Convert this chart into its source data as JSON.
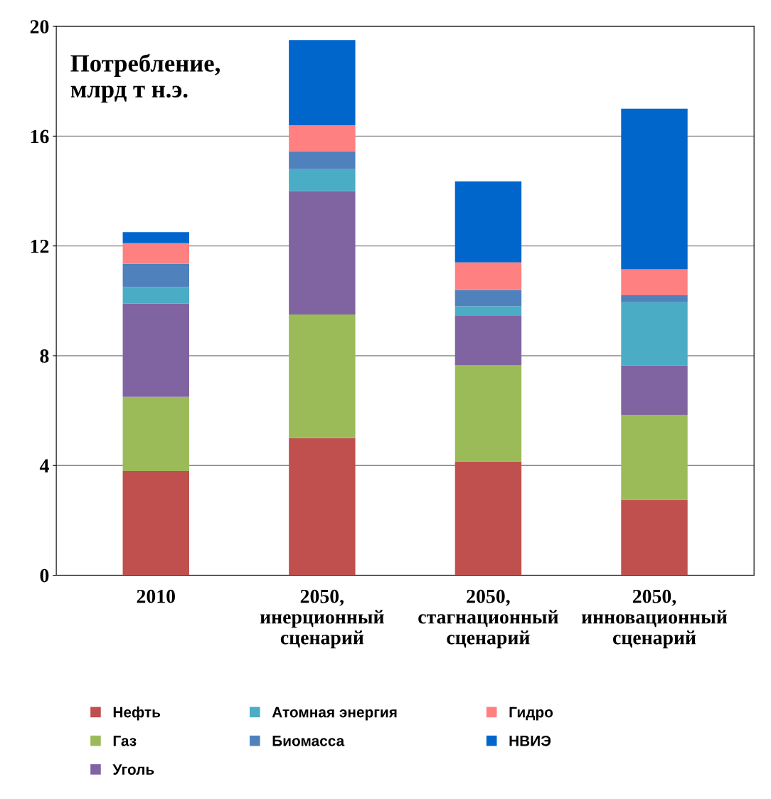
{
  "chart_data": {
    "type": "bar",
    "stacked": true,
    "title": "Потребление,\nмлрд т н.э.",
    "categories": [
      "2010",
      "2050,\nинерционный\nсценарий",
      "2050,\nстагнационный\nсценарий",
      "2050,\nинновационный\nсценарий"
    ],
    "series": [
      {
        "name": "Нефть",
        "color": "#c0504d",
        "values": [
          3.8,
          5.0,
          4.15,
          2.75
        ]
      },
      {
        "name": "Газ",
        "color": "#9bbb59",
        "values": [
          2.7,
          4.5,
          3.5,
          3.1
        ]
      },
      {
        "name": "Уголь",
        "color": "#8064a2",
        "values": [
          3.4,
          4.5,
          1.8,
          1.8
        ]
      },
      {
        "name": "Атомная энергия",
        "color": "#4bacc6",
        "values": [
          0.6,
          0.8,
          0.35,
          2.3
        ]
      },
      {
        "name": "Биомасса",
        "color": "#4f81bd",
        "values": [
          0.85,
          0.65,
          0.6,
          0.25
        ]
      },
      {
        "name": "Гидро",
        "color": "#ff8080",
        "values": [
          0.75,
          0.95,
          1.0,
          0.95
        ]
      },
      {
        "name": "НВИЭ",
        "color": "#0066cc",
        "values": [
          0.4,
          3.1,
          2.95,
          5.85
        ]
      }
    ],
    "ylim": [
      0,
      20
    ],
    "yticks": [
      0,
      4,
      8,
      12,
      16,
      20
    ],
    "grid": "y",
    "legend": "bottom"
  }
}
